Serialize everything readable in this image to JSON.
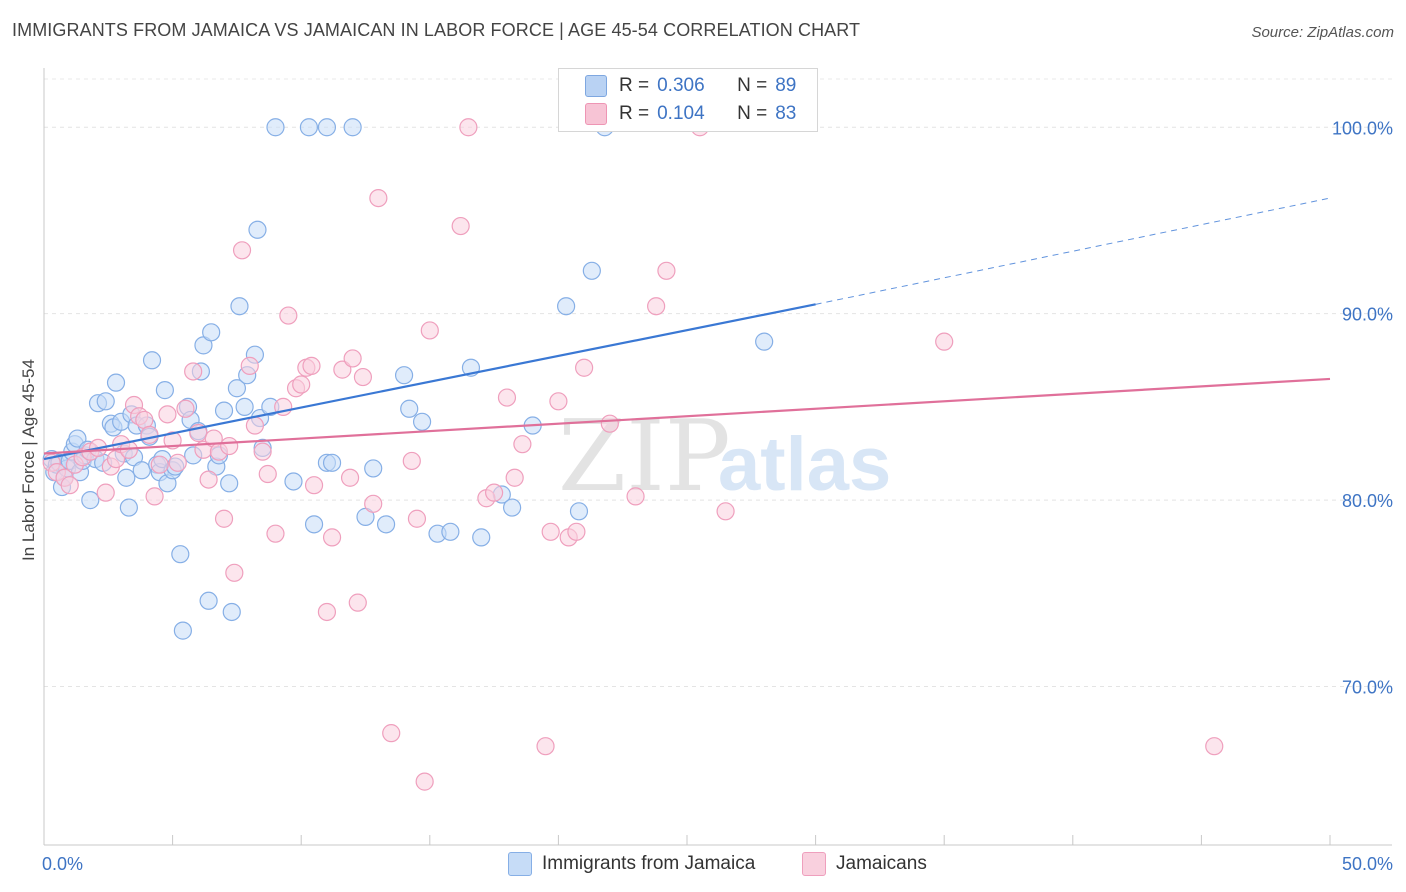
{
  "title": "IMMIGRANTS FROM JAMAICA VS JAMAICAN IN LABOR FORCE | AGE 45-54 CORRELATION CHART",
  "source": "Source: ZipAtlas.com",
  "watermark": {
    "zip": "ZIP",
    "atlas": "atlas"
  },
  "legend": {
    "r_label": "R =",
    "n_label": "N =",
    "series": [
      {
        "r": "0.306",
        "n": "89",
        "fill": "#b9d2f3",
        "stroke": "#7ea7e0"
      },
      {
        "r": "0.104",
        "n": "83",
        "fill": "#f7c4d5",
        "stroke": "#ee95b4"
      }
    ]
  },
  "chart_data": {
    "type": "scatter",
    "title": "IMMIGRANTS FROM JAMAICA VS JAMAICAN IN LABOR FORCE | AGE 45-54 CORRELATION CHART",
    "xlabel": "",
    "ylabel": "In Labor Force | Age 45-54",
    "xlim": [
      0,
      50
    ],
    "ylim": [
      61.5,
      103.5
    ],
    "x_tick_labels": [
      "0.0%",
      "50.0%"
    ],
    "y_ticks": [
      70,
      80,
      90,
      100
    ],
    "y_tick_labels": [
      "70.0%",
      "80.0%",
      "90.0%",
      "100.0%"
    ],
    "grid": true,
    "series": [
      {
        "name": "Immigrants from Jamaica",
        "color": "#3a78d4",
        "marker_fill": "#c6dcf7",
        "marker_stroke": "#86afe6",
        "trend": {
          "x0": 0,
          "y0": 82.2,
          "x1": 30,
          "y1": 90.5,
          "dashed_to_x": 50,
          "dashed_to_y": 96.2
        },
        "points": [
          [
            0.3,
            82.2
          ],
          [
            0.4,
            81.5
          ],
          [
            0.5,
            81.9
          ],
          [
            0.6,
            82.0
          ],
          [
            0.7,
            80.7
          ],
          [
            0.8,
            81.2
          ],
          [
            0.9,
            81.7
          ],
          [
            1.0,
            82.1
          ],
          [
            1.1,
            82.6
          ],
          [
            1.2,
            83.0
          ],
          [
            1.3,
            83.3
          ],
          [
            1.4,
            81.5
          ],
          [
            1.5,
            82.1
          ],
          [
            1.6,
            82.4
          ],
          [
            1.7,
            82.7
          ],
          [
            1.8,
            80.0
          ],
          [
            2.0,
            82.2
          ],
          [
            2.1,
            85.2
          ],
          [
            2.3,
            82.0
          ],
          [
            2.4,
            85.3
          ],
          [
            2.6,
            84.1
          ],
          [
            2.7,
            83.9
          ],
          [
            2.8,
            86.3
          ],
          [
            3.0,
            84.2
          ],
          [
            3.1,
            82.5
          ],
          [
            3.2,
            81.2
          ],
          [
            3.3,
            79.6
          ],
          [
            3.4,
            84.6
          ],
          [
            3.5,
            82.3
          ],
          [
            3.6,
            84.0
          ],
          [
            3.8,
            81.6
          ],
          [
            4.0,
            84.0
          ],
          [
            4.1,
            83.4
          ],
          [
            4.2,
            87.5
          ],
          [
            4.4,
            81.9
          ],
          [
            4.5,
            81.5
          ],
          [
            4.6,
            82.2
          ],
          [
            4.7,
            85.9
          ],
          [
            4.8,
            80.9
          ],
          [
            5.0,
            81.6
          ],
          [
            5.1,
            81.8
          ],
          [
            5.3,
            77.1
          ],
          [
            5.4,
            73.0
          ],
          [
            5.6,
            85.0
          ],
          [
            5.7,
            84.3
          ],
          [
            5.8,
            82.4
          ],
          [
            6.0,
            83.7
          ],
          [
            6.1,
            86.9
          ],
          [
            6.2,
            88.3
          ],
          [
            6.4,
            74.6
          ],
          [
            6.5,
            89.0
          ],
          [
            6.7,
            81.8
          ],
          [
            6.8,
            82.4
          ],
          [
            7.0,
            84.8
          ],
          [
            7.2,
            80.9
          ],
          [
            7.3,
            74.0
          ],
          [
            7.5,
            86.0
          ],
          [
            7.6,
            90.4
          ],
          [
            7.8,
            85.0
          ],
          [
            7.9,
            86.7
          ],
          [
            8.2,
            87.8
          ],
          [
            8.3,
            94.5
          ],
          [
            8.4,
            84.4
          ],
          [
            8.5,
            82.8
          ],
          [
            8.8,
            85.0
          ],
          [
            9.0,
            100.0
          ],
          [
            9.7,
            81.0
          ],
          [
            10.3,
            100.0
          ],
          [
            10.5,
            78.7
          ],
          [
            11.0,
            100.0
          ],
          [
            11.0,
            82.0
          ],
          [
            11.2,
            82.0
          ],
          [
            12.0,
            100.0
          ],
          [
            12.5,
            79.1
          ],
          [
            12.8,
            81.7
          ],
          [
            13.3,
            78.7
          ],
          [
            14.0,
            86.7
          ],
          [
            14.2,
            84.9
          ],
          [
            14.7,
            84.2
          ],
          [
            15.3,
            78.2
          ],
          [
            15.8,
            78.3
          ],
          [
            16.6,
            87.1
          ],
          [
            17.0,
            78.0
          ],
          [
            17.8,
            80.3
          ],
          [
            18.2,
            79.6
          ],
          [
            19.0,
            84.0
          ],
          [
            20.3,
            90.4
          ],
          [
            20.8,
            79.4
          ],
          [
            21.3,
            92.3
          ],
          [
            21.8,
            100.0
          ],
          [
            28.0,
            88.5
          ]
        ]
      },
      {
        "name": "Jamaicans",
        "color": "#e0709a",
        "marker_fill": "#f9d0de",
        "marker_stroke": "#ef9fbd",
        "trend": {
          "x0": 0,
          "y0": 82.5,
          "x1": 50,
          "y1": 86.5
        },
        "points": [
          [
            0.3,
            82.0
          ],
          [
            0.5,
            81.5
          ],
          [
            0.8,
            81.2
          ],
          [
            1.0,
            80.8
          ],
          [
            1.2,
            81.9
          ],
          [
            1.5,
            82.3
          ],
          [
            1.8,
            82.6
          ],
          [
            2.1,
            82.8
          ],
          [
            2.4,
            80.4
          ],
          [
            2.6,
            81.8
          ],
          [
            2.8,
            82.2
          ],
          [
            3.0,
            83.0
          ],
          [
            3.3,
            82.7
          ],
          [
            3.5,
            85.1
          ],
          [
            3.7,
            84.5
          ],
          [
            3.9,
            84.3
          ],
          [
            4.1,
            83.5
          ],
          [
            4.3,
            80.2
          ],
          [
            4.5,
            81.9
          ],
          [
            4.8,
            84.6
          ],
          [
            5.0,
            83.2
          ],
          [
            5.2,
            82.0
          ],
          [
            5.5,
            84.9
          ],
          [
            5.8,
            86.9
          ],
          [
            6.0,
            83.6
          ],
          [
            6.2,
            82.7
          ],
          [
            6.4,
            81.1
          ],
          [
            6.6,
            83.3
          ],
          [
            6.8,
            82.6
          ],
          [
            7.0,
            79.0
          ],
          [
            7.2,
            82.9
          ],
          [
            7.4,
            76.1
          ],
          [
            7.7,
            93.4
          ],
          [
            8.0,
            87.2
          ],
          [
            8.2,
            84.0
          ],
          [
            8.5,
            82.6
          ],
          [
            8.7,
            81.4
          ],
          [
            9.0,
            78.2
          ],
          [
            9.3,
            85.0
          ],
          [
            9.5,
            89.9
          ],
          [
            9.8,
            86.0
          ],
          [
            10.0,
            86.2
          ],
          [
            10.2,
            87.1
          ],
          [
            10.4,
            87.2
          ],
          [
            10.5,
            80.8
          ],
          [
            11.0,
            74.0
          ],
          [
            11.2,
            78.0
          ],
          [
            11.6,
            87.0
          ],
          [
            11.9,
            81.2
          ],
          [
            12.0,
            87.6
          ],
          [
            12.2,
            74.5
          ],
          [
            12.4,
            86.6
          ],
          [
            12.8,
            79.8
          ],
          [
            13.0,
            96.2
          ],
          [
            13.5,
            67.5
          ],
          [
            14.3,
            82.1
          ],
          [
            14.5,
            79.0
          ],
          [
            14.8,
            64.9
          ],
          [
            15.0,
            89.1
          ],
          [
            16.5,
            100.0
          ],
          [
            16.2,
            94.7
          ],
          [
            17.2,
            80.1
          ],
          [
            17.5,
            80.4
          ],
          [
            18.0,
            85.5
          ],
          [
            18.3,
            81.2
          ],
          [
            18.6,
            83.0
          ],
          [
            19.5,
            66.8
          ],
          [
            19.7,
            78.3
          ],
          [
            20.0,
            85.3
          ],
          [
            20.4,
            78.0
          ],
          [
            20.7,
            78.3
          ],
          [
            21.0,
            87.1
          ],
          [
            22.0,
            84.1
          ],
          [
            23.0,
            80.2
          ],
          [
            23.8,
            90.4
          ],
          [
            24.2,
            92.3
          ],
          [
            25.5,
            100.0
          ],
          [
            26.5,
            79.4
          ],
          [
            35.0,
            88.5
          ],
          [
            45.5,
            66.8
          ]
        ]
      }
    ]
  },
  "bottom_legend": [
    {
      "label": "Immigrants from Jamaica",
      "fill": "#c6dcf7",
      "stroke": "#86afe6"
    },
    {
      "label": "Jamaicans",
      "fill": "#f9d0de",
      "stroke": "#ef9fbd"
    }
  ]
}
